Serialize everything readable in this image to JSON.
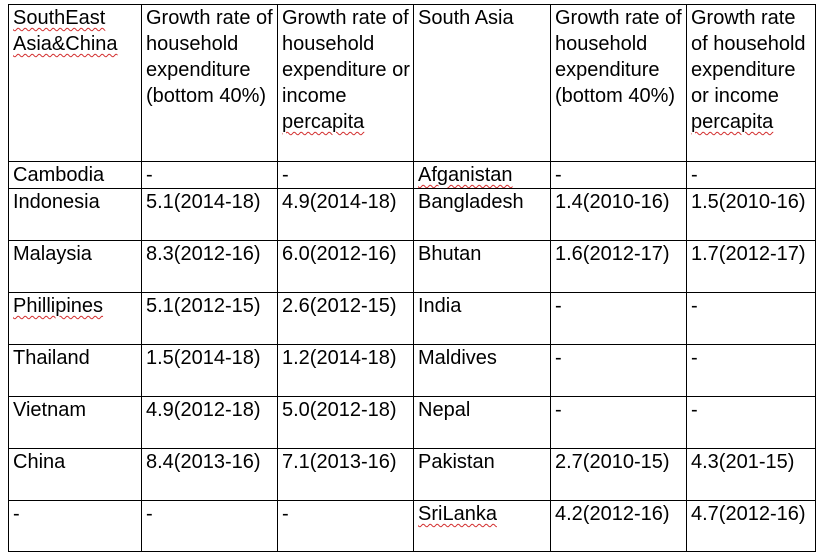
{
  "table": {
    "header": {
      "sea_region": "SouthEast Asia&China",
      "sea_bottom40": "Growth rate of household expenditure (bottom 40%)",
      "sea_percapita_prefix": "Growth rate of household expenditure or income ",
      "sea_percapita_word": "percapita",
      "sa_region": "South Asia",
      "sa_bottom40": "Growth rate of household expenditure (bottom 40%)",
      "sa_percapita_prefix": "Growth rate of household expenditure or income ",
      "sa_percapita_word": "percapita"
    },
    "rows": [
      {
        "sea_country": "Cambodia",
        "sea_bottom40": "-",
        "sea_percapita": "-",
        "sa_country": "Afganistan",
        "sa_bottom40": "-",
        "sa_percapita": "-"
      },
      {
        "sea_country": "Indonesia",
        "sea_bottom40": "5.1(2014-18)",
        "sea_percapita": "4.9(2014-18)",
        "sa_country": "Bangladesh",
        "sa_bottom40": "1.4(2010-16)",
        "sa_percapita": "1.5(2010-16)"
      },
      {
        "sea_country": "Malaysia",
        "sea_bottom40": "8.3(2012-16)",
        "sea_percapita": "6.0(2012-16)",
        "sa_country": "Bhutan",
        "sa_bottom40": "1.6(2012-17)",
        "sa_percapita": "1.7(2012-17)"
      },
      {
        "sea_country": "Phillipines",
        "sea_bottom40": "5.1(2012-15)",
        "sea_percapita": "2.6(2012-15)",
        "sa_country": "India",
        "sa_bottom40": "-",
        "sa_percapita": "-"
      },
      {
        "sea_country": "Thailand",
        "sea_bottom40": "1.5(2014-18)",
        "sea_percapita": "1.2(2014-18)",
        "sa_country": "Maldives",
        "sa_bottom40": "-",
        "sa_percapita": "-"
      },
      {
        "sea_country": "Vietnam",
        "sea_bottom40": "4.9(2012-18)",
        "sea_percapita": "5.0(2012-18)",
        "sa_country": "Nepal",
        "sa_bottom40": "-",
        "sa_percapita": "-"
      },
      {
        "sea_country": "China",
        "sea_bottom40": "8.4(2013-16)",
        "sea_percapita": "7.1(2013-16)",
        "sa_country": "Pakistan",
        "sa_bottom40": "2.7(2010-15)",
        "sa_percapita": "4.3(201-15)"
      },
      {
        "sea_country": "-",
        "sea_bottom40": "-",
        "sea_percapita": "-",
        "sa_country": "SriLanka",
        "sa_bottom40": "4.2(2012-16)",
        "sa_percapita": "4.7(2012-16)"
      }
    ]
  }
}
